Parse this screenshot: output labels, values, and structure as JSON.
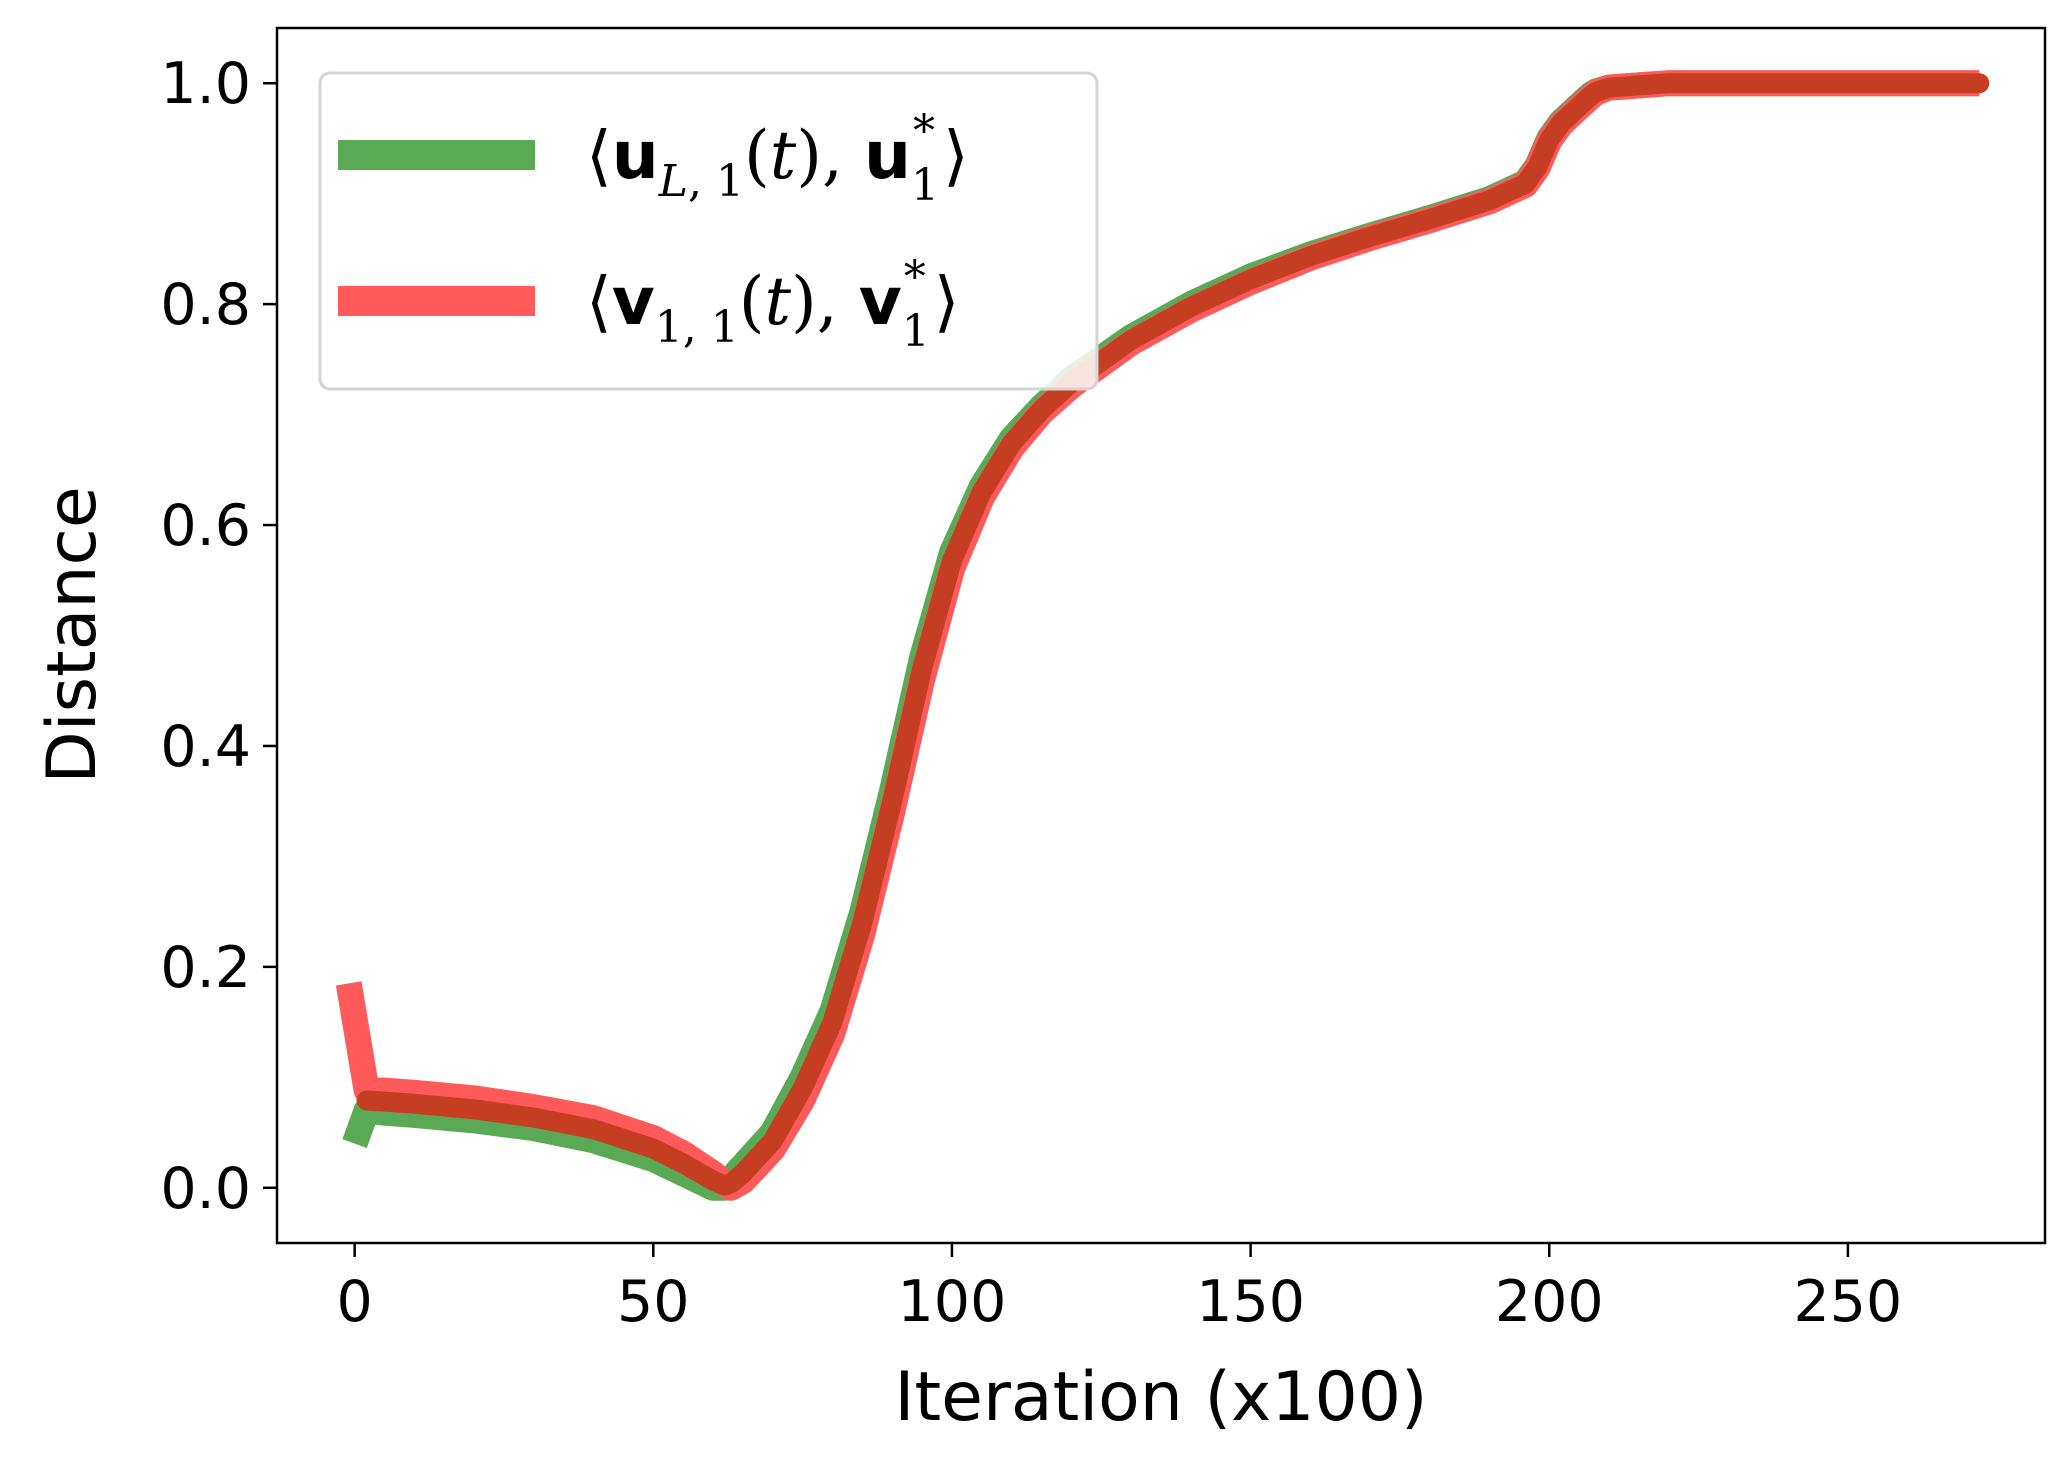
{
  "chart_data": {
    "type": "line",
    "title": "",
    "xlabel": "Iteration (x100)",
    "ylabel": "Distance",
    "xlim": [
      -13,
      283
    ],
    "ylim": [
      -0.05,
      1.05
    ],
    "xticks": [
      0,
      50,
      100,
      150,
      200,
      250
    ],
    "xtick_labels": [
      "0",
      "50",
      "100",
      "150",
      "200",
      "250"
    ],
    "yticks": [
      0.0,
      0.2,
      0.4,
      0.6,
      0.8,
      1.0
    ],
    "ytick_labels": [
      "0.0",
      "0.2",
      "0.4",
      "0.6",
      "0.8",
      "1.0"
    ],
    "grid": false,
    "legend_position": "top-left",
    "overlap_color": "#c53d22",
    "series": [
      {
        "name": "⟨u_{L,1}(t), u_1^*⟩",
        "color": "#5aaa55",
        "x": [
          0,
          2,
          5,
          10,
          20,
          30,
          40,
          50,
          55,
          60,
          62,
          63,
          65,
          70,
          75,
          80,
          85,
          90,
          95,
          100,
          105,
          110,
          115,
          120,
          130,
          140,
          150,
          160,
          170,
          180,
          190,
          196,
          198,
          200,
          202,
          205,
          207,
          208,
          210,
          215,
          220,
          230,
          250,
          272
        ],
        "y": [
          0.04,
          0.07,
          0.068,
          0.066,
          0.061,
          0.054,
          0.043,
          0.026,
          0.013,
          0.0,
          0.0,
          0.008,
          0.02,
          0.05,
          0.1,
          0.16,
          0.25,
          0.36,
          0.48,
          0.575,
          0.635,
          0.678,
          0.707,
          0.732,
          0.77,
          0.8,
          0.825,
          0.845,
          0.862,
          0.878,
          0.895,
          0.91,
          0.925,
          0.95,
          0.965,
          0.98,
          0.99,
          0.993,
          0.996,
          0.998,
          1.0,
          1.0,
          1.0,
          1.0
        ]
      },
      {
        "name": "⟨v_{1,1}(t), v_1^*⟩",
        "color": "#ff5a5a",
        "x": [
          -1,
          2,
          5,
          10,
          20,
          30,
          40,
          50,
          55,
          60,
          62,
          63,
          65,
          70,
          75,
          80,
          85,
          90,
          95,
          100,
          105,
          110,
          115,
          120,
          130,
          140,
          150,
          160,
          170,
          180,
          190,
          196,
          198,
          200,
          202,
          205,
          207,
          208,
          210,
          215,
          220,
          230,
          250,
          272
        ],
        "y": [
          0.185,
          0.088,
          0.088,
          0.086,
          0.081,
          0.073,
          0.063,
          0.045,
          0.031,
          0.013,
          0.004,
          0.0,
          0.006,
          0.035,
          0.08,
          0.14,
          0.23,
          0.34,
          0.46,
          0.56,
          0.625,
          0.67,
          0.702,
          0.726,
          0.765,
          0.795,
          0.82,
          0.842,
          0.86,
          0.876,
          0.893,
          0.908,
          0.923,
          0.948,
          0.963,
          0.978,
          0.988,
          0.992,
          0.996,
          0.998,
          1.0,
          1.0,
          1.0,
          1.0
        ]
      }
    ]
  }
}
